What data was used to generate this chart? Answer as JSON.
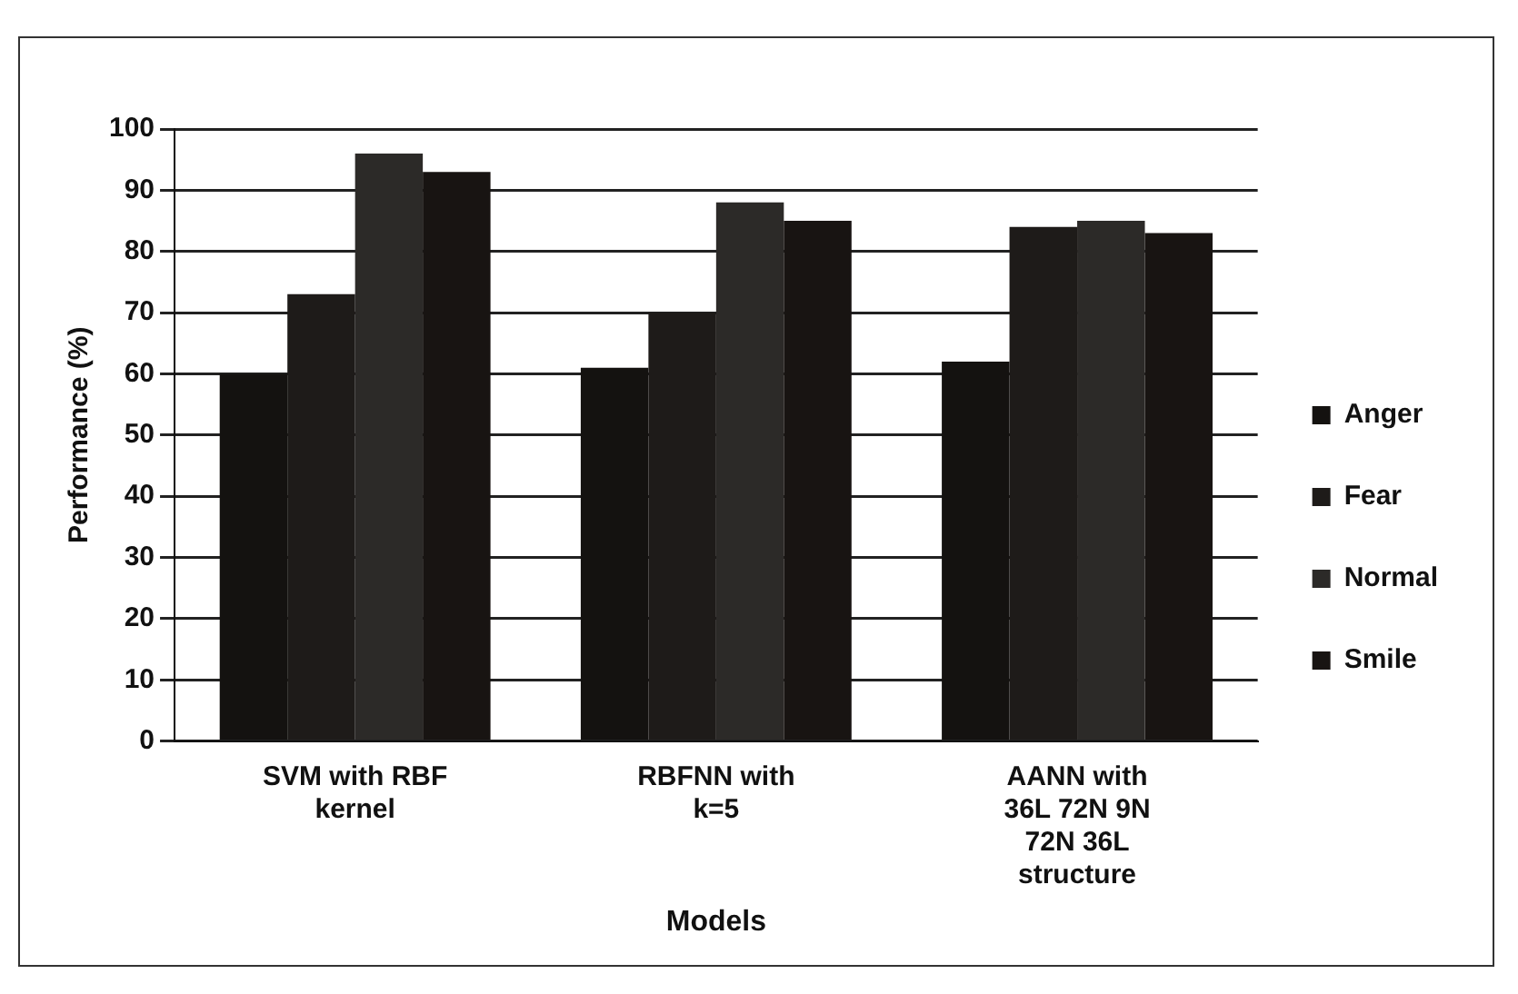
{
  "chart_data": {
    "type": "bar",
    "xlabel": "Models",
    "ylabel": "Performance (%)",
    "categories": [
      "SVM with RBF kernel",
      "RBFNN with k=5",
      "AANN with 36L 72N 9N 72N 36L structure"
    ],
    "series": [
      {
        "name": "Anger",
        "color": "#141210",
        "values": [
          60,
          61,
          62
        ]
      },
      {
        "name": "Fear",
        "color": "#1e1b19",
        "values": [
          73,
          70,
          84
        ]
      },
      {
        "name": "Normal",
        "color": "#2c2a28",
        "values": [
          96,
          88,
          85
        ]
      },
      {
        "name": "Smile",
        "color": "#181412",
        "values": [
          93,
          85,
          83
        ]
      }
    ],
    "ylim": [
      0,
      100
    ],
    "yticks": [
      0,
      10,
      20,
      30,
      40,
      50,
      60,
      70,
      80,
      90,
      100
    ],
    "grid": "y",
    "legend": "right"
  }
}
